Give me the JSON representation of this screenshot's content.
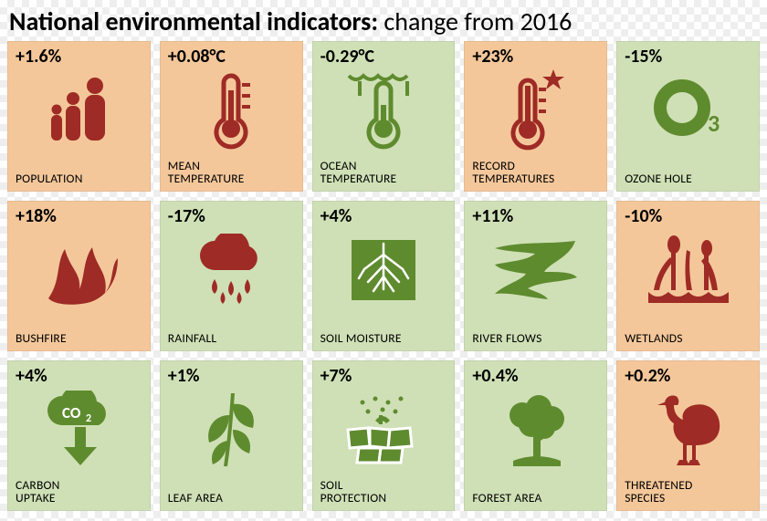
{
  "title_bold": "National environmental indicators:",
  "title_rest": " change from 2016",
  "title_fontsize": 28,
  "columns": 5,
  "rows": 3,
  "colors": {
    "tile_warm": "#f4c79a",
    "tile_cool": "#cfe0b6",
    "icon_red": "#9e2b25",
    "icon_green": "#5f8b2f"
  },
  "tiles": [
    {
      "value": "+1.6%",
      "label": "POPULATION",
      "bg": "#f4c79a",
      "icon": "people",
      "icon_color": "#9e2b25"
    },
    {
      "value": "+0.08°C",
      "label": "MEAN\nTEMPERATURE",
      "bg": "#f4c79a",
      "icon": "thermo",
      "icon_color": "#9e2b25"
    },
    {
      "value": "-0.29°C",
      "label": "OCEAN\nTEMPERATURE",
      "bg": "#cfe0b6",
      "icon": "thermo-sea",
      "icon_color": "#5f8b2f"
    },
    {
      "value": "+23%",
      "label": "RECORD\nTEMPERATURES",
      "bg": "#f4c79a",
      "icon": "thermo-star",
      "icon_color": "#9e2b25"
    },
    {
      "value": "-15%",
      "label": "OZONE HOLE",
      "bg": "#cfe0b6",
      "icon": "ozone",
      "icon_color": "#5f8b2f"
    },
    {
      "value": "+18%",
      "label": "BUSHFIRE",
      "bg": "#f4c79a",
      "icon": "fire",
      "icon_color": "#9e2b25"
    },
    {
      "value": "-17%",
      "label": "RAINFALL",
      "bg": "#cfe0b6",
      "icon": "rain",
      "icon_color": "#9e2b25"
    },
    {
      "value": "+4%",
      "label": "SOIL MOISTURE",
      "bg": "#cfe0b6",
      "icon": "roots",
      "icon_color": "#5f8b2f"
    },
    {
      "value": "+11%",
      "label": "RIVER FLOWS",
      "bg": "#cfe0b6",
      "icon": "river",
      "icon_color": "#5f8b2f"
    },
    {
      "value": "-10%",
      "label": "WETLANDS",
      "bg": "#f4c79a",
      "icon": "wetlands",
      "icon_color": "#9e2b25"
    },
    {
      "value": "+4%",
      "label": "CARBON\nUPTAKE",
      "bg": "#cfe0b6",
      "icon": "co2",
      "icon_color": "#5f8b2f"
    },
    {
      "value": "+1%",
      "label": "LEAF AREA",
      "bg": "#cfe0b6",
      "icon": "leaves",
      "icon_color": "#5f8b2f"
    },
    {
      "value": "+7%",
      "label": "SOIL\nPROTECTION",
      "bg": "#cfe0b6",
      "icon": "soil",
      "icon_color": "#5f8b2f"
    },
    {
      "value": "+0.4%",
      "label": "FOREST AREA",
      "bg": "#cfe0b6",
      "icon": "tree",
      "icon_color": "#5f8b2f"
    },
    {
      "value": "+0.2%",
      "label": "THREATENED\nSPECIES",
      "bg": "#f4c79a",
      "icon": "emu",
      "icon_color": "#9e2b25"
    }
  ]
}
